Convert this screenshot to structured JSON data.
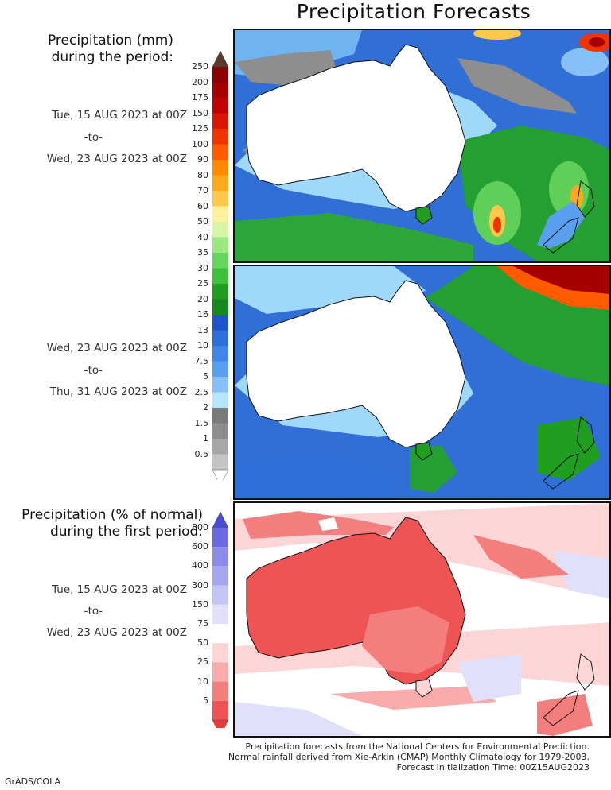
{
  "title": "Precipitation Forecasts",
  "precip_legend": {
    "heading_line1": "Precipitation (mm)",
    "heading_line2": "during the period:",
    "labels": [
      "250",
      "200",
      "175",
      "150",
      "125",
      "100",
      "90",
      "80",
      "70",
      "60",
      "50",
      "40",
      "35",
      "30",
      "25",
      "20",
      "16",
      "13",
      "10",
      "7.5",
      "5",
      "2.5",
      "2",
      "1.5",
      "1",
      "0.5"
    ],
    "colors": [
      "#8b0000",
      "#a60000",
      "#c00000",
      "#d81800",
      "#f03400",
      "#ff5a00",
      "#ff8c00",
      "#ffa81c",
      "#ffc84a",
      "#fff09c",
      "#d6f5a6",
      "#9ae87f",
      "#66d55e",
      "#3cc23a",
      "#1f9e20",
      "#168a1e",
      "#1f55c8",
      "#2d6fd9",
      "#3f86e8",
      "#5aa0f0",
      "#86c0f6",
      "#b6e6fa",
      "#7a7a7a",
      "#8e8e8e",
      "#a6a6a6",
      "#c4c4c4"
    ],
    "top_color": "#5a3a2a"
  },
  "period1": {
    "start": "Tue, 15 AUG 2023 at 00Z",
    "to": "-to-",
    "end": "Wed, 23 AUG 2023 at 00Z"
  },
  "period2": {
    "start": "Wed, 23 AUG 2023 at 00Z",
    "to": "-to-",
    "end": "Thu, 31 AUG 2023 at 00Z"
  },
  "pct_legend": {
    "heading_line1": "Precipitation (% of normal)",
    "heading_line2": "during the first period:",
    "labels": [
      "800",
      "600",
      "400",
      "300",
      "150",
      "75",
      "50",
      "25",
      "10",
      "5"
    ],
    "colors": [
      "#6a6ae0",
      "#8c8ce8",
      "#a6a6ee",
      "#c4c4f4",
      "#e0e0fa",
      "#ffffff",
      "#fcd6d6",
      "#f9aaaa",
      "#f47e7e",
      "#ee5454"
    ],
    "top_color": "#4a4ad4",
    "bottom_color": "#e83838"
  },
  "period3": {
    "start": "Tue, 15 AUG 2023 at 00Z",
    "to": "-to-",
    "end": "Wed, 23 AUG 2023 at 00Z"
  },
  "footer": {
    "line1": "Precipitation forecasts from the National Centers for Environmental Prediction.",
    "line2": "Normal rainfall derived from Xie-Arkin (CMAP) Monthly Climatology for 1979-2003.",
    "line3": "Forecast Initialization Time: 00Z15AUG2023"
  },
  "credit": "GrADS/COLA"
}
